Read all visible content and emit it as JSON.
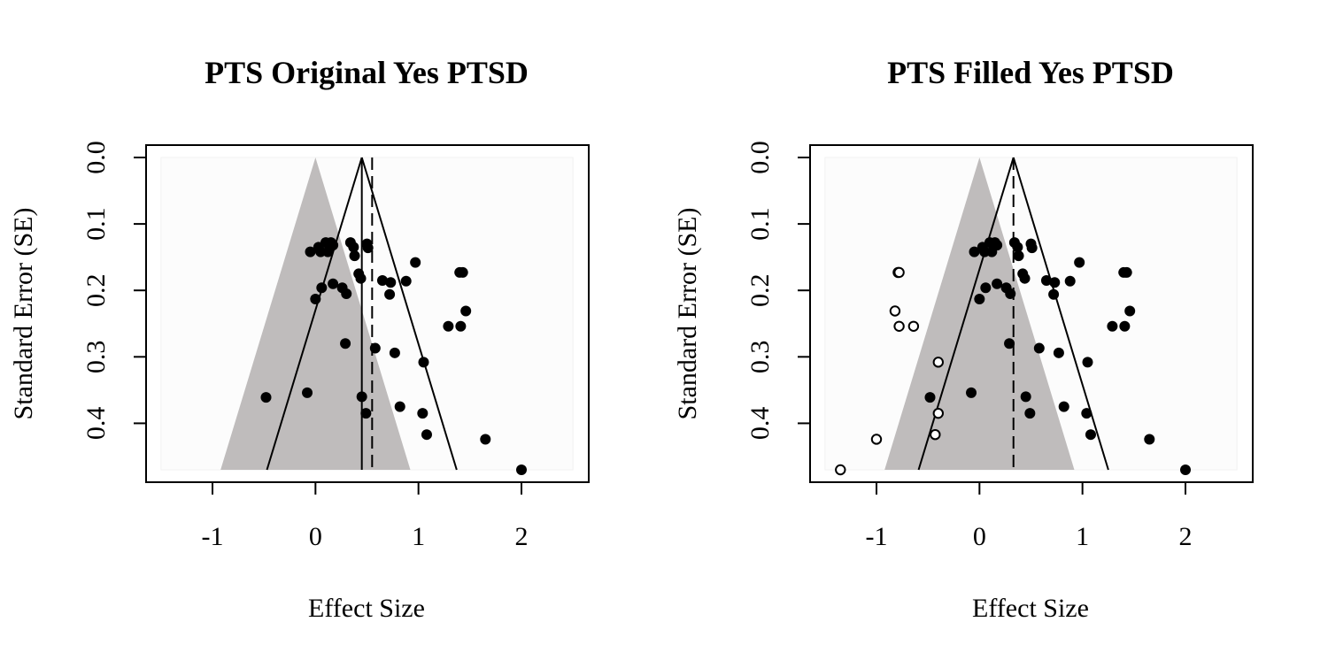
{
  "colors": {
    "funnel_fill": "#bfbcbc",
    "region_fill": "#fcfcfc",
    "ink": "#000000",
    "background": "#ffffff"
  },
  "chart_data": [
    {
      "type": "scatter",
      "title": "PTS Original Yes PTSD",
      "xlabel": "Effect Size",
      "ylabel": "Standard Error (SE)",
      "xlim": [
        -1.5,
        2.5
      ],
      "ylim": [
        0,
        0.47
      ],
      "y_reversed": true,
      "xticks": [
        -1,
        0,
        1,
        2
      ],
      "xtick_labels": [
        "-1",
        "0",
        "1",
        "2"
      ],
      "yticks": [
        0,
        0.1,
        0.2,
        0.3,
        0.4
      ],
      "ytick_labels": [
        "0.0",
        "0.1",
        "0.2",
        "0.3",
        "0.4"
      ],
      "grey_funnel_center": 0,
      "summary_estimate": 0.45,
      "dashed_line_x": 0.55,
      "funnel_bottom_se": 0.47,
      "series": [
        {
          "marker": "filled",
          "points": [
            [
              -0.05,
              0.142
            ],
            [
              0.03,
              0.135
            ],
            [
              0.05,
              0.142
            ],
            [
              0.1,
              0.128
            ],
            [
              0.12,
              0.142
            ],
            [
              0.15,
              0.128
            ],
            [
              0.17,
              0.132
            ],
            [
              0.34,
              0.128
            ],
            [
              0.37,
              0.135
            ],
            [
              0.38,
              0.148
            ],
            [
              0.5,
              0.13
            ],
            [
              0.51,
              0.136
            ],
            [
              0.42,
              0.175
            ],
            [
              0.44,
              0.182
            ],
            [
              0.0,
              0.213
            ],
            [
              0.06,
              0.196
            ],
            [
              0.17,
              0.19
            ],
            [
              0.26,
              0.196
            ],
            [
              0.3,
              0.205
            ],
            [
              0.65,
              0.185
            ],
            [
              0.73,
              0.188
            ],
            [
              0.72,
              0.206
            ],
            [
              0.88,
              0.186
            ],
            [
              0.97,
              0.158
            ],
            [
              1.4,
              0.173
            ],
            [
              1.43,
              0.173
            ],
            [
              1.46,
              0.231
            ],
            [
              1.29,
              0.254
            ],
            [
              1.41,
              0.254
            ],
            [
              0.29,
              0.28
            ],
            [
              0.58,
              0.287
            ],
            [
              0.77,
              0.294
            ],
            [
              1.05,
              0.308
            ],
            [
              -0.48,
              0.361
            ],
            [
              -0.08,
              0.354
            ],
            [
              0.45,
              0.36
            ],
            [
              0.49,
              0.385
            ],
            [
              0.82,
              0.375
            ],
            [
              1.04,
              0.385
            ],
            [
              1.08,
              0.417
            ],
            [
              1.65,
              0.424
            ],
            [
              2.0,
              0.47
            ]
          ]
        }
      ]
    },
    {
      "type": "scatter",
      "title": "PTS Filled Yes PTSD",
      "xlabel": "Effect Size",
      "ylabel": "Standard Error (SE)",
      "xlim": [
        -1.5,
        2.5
      ],
      "ylim": [
        0,
        0.47
      ],
      "y_reversed": true,
      "xticks": [
        -1,
        0,
        1,
        2
      ],
      "xtick_labels": [
        "-1",
        "0",
        "1",
        "2"
      ],
      "yticks": [
        0,
        0.1,
        0.2,
        0.3,
        0.4
      ],
      "ytick_labels": [
        "0.0",
        "0.1",
        "0.2",
        "0.3",
        "0.4"
      ],
      "grey_funnel_center": 0,
      "summary_estimate": 0.33,
      "dashed_line_x": 0.33,
      "funnel_bottom_se": 0.47,
      "series": [
        {
          "marker": "filled",
          "points": [
            [
              -0.05,
              0.142
            ],
            [
              0.03,
              0.135
            ],
            [
              0.05,
              0.142
            ],
            [
              0.1,
              0.128
            ],
            [
              0.12,
              0.142
            ],
            [
              0.15,
              0.128
            ],
            [
              0.17,
              0.132
            ],
            [
              0.34,
              0.128
            ],
            [
              0.37,
              0.135
            ],
            [
              0.38,
              0.148
            ],
            [
              0.5,
              0.13
            ],
            [
              0.51,
              0.136
            ],
            [
              0.42,
              0.175
            ],
            [
              0.44,
              0.182
            ],
            [
              0.0,
              0.213
            ],
            [
              0.06,
              0.196
            ],
            [
              0.17,
              0.19
            ],
            [
              0.26,
              0.196
            ],
            [
              0.3,
              0.205
            ],
            [
              0.65,
              0.185
            ],
            [
              0.73,
              0.188
            ],
            [
              0.72,
              0.206
            ],
            [
              0.88,
              0.186
            ],
            [
              0.97,
              0.158
            ],
            [
              1.4,
              0.173
            ],
            [
              1.43,
              0.173
            ],
            [
              1.46,
              0.231
            ],
            [
              1.29,
              0.254
            ],
            [
              1.41,
              0.254
            ],
            [
              0.29,
              0.28
            ],
            [
              0.58,
              0.287
            ],
            [
              0.77,
              0.294
            ],
            [
              1.05,
              0.308
            ],
            [
              -0.48,
              0.361
            ],
            [
              -0.08,
              0.354
            ],
            [
              0.45,
              0.36
            ],
            [
              0.49,
              0.385
            ],
            [
              0.82,
              0.375
            ],
            [
              1.04,
              0.385
            ],
            [
              1.08,
              0.417
            ],
            [
              1.65,
              0.424
            ],
            [
              2.0,
              0.47
            ]
          ]
        },
        {
          "marker": "open",
          "points": [
            [
              -0.79,
              0.173
            ],
            [
              -0.78,
              0.173
            ],
            [
              -0.82,
              0.231
            ],
            [
              -0.78,
              0.254
            ],
            [
              -0.64,
              0.254
            ],
            [
              -0.4,
              0.308
            ],
            [
              -0.4,
              0.385
            ],
            [
              -0.43,
              0.417
            ],
            [
              -1.0,
              0.424
            ],
            [
              -1.35,
              0.47
            ]
          ]
        }
      ]
    }
  ]
}
